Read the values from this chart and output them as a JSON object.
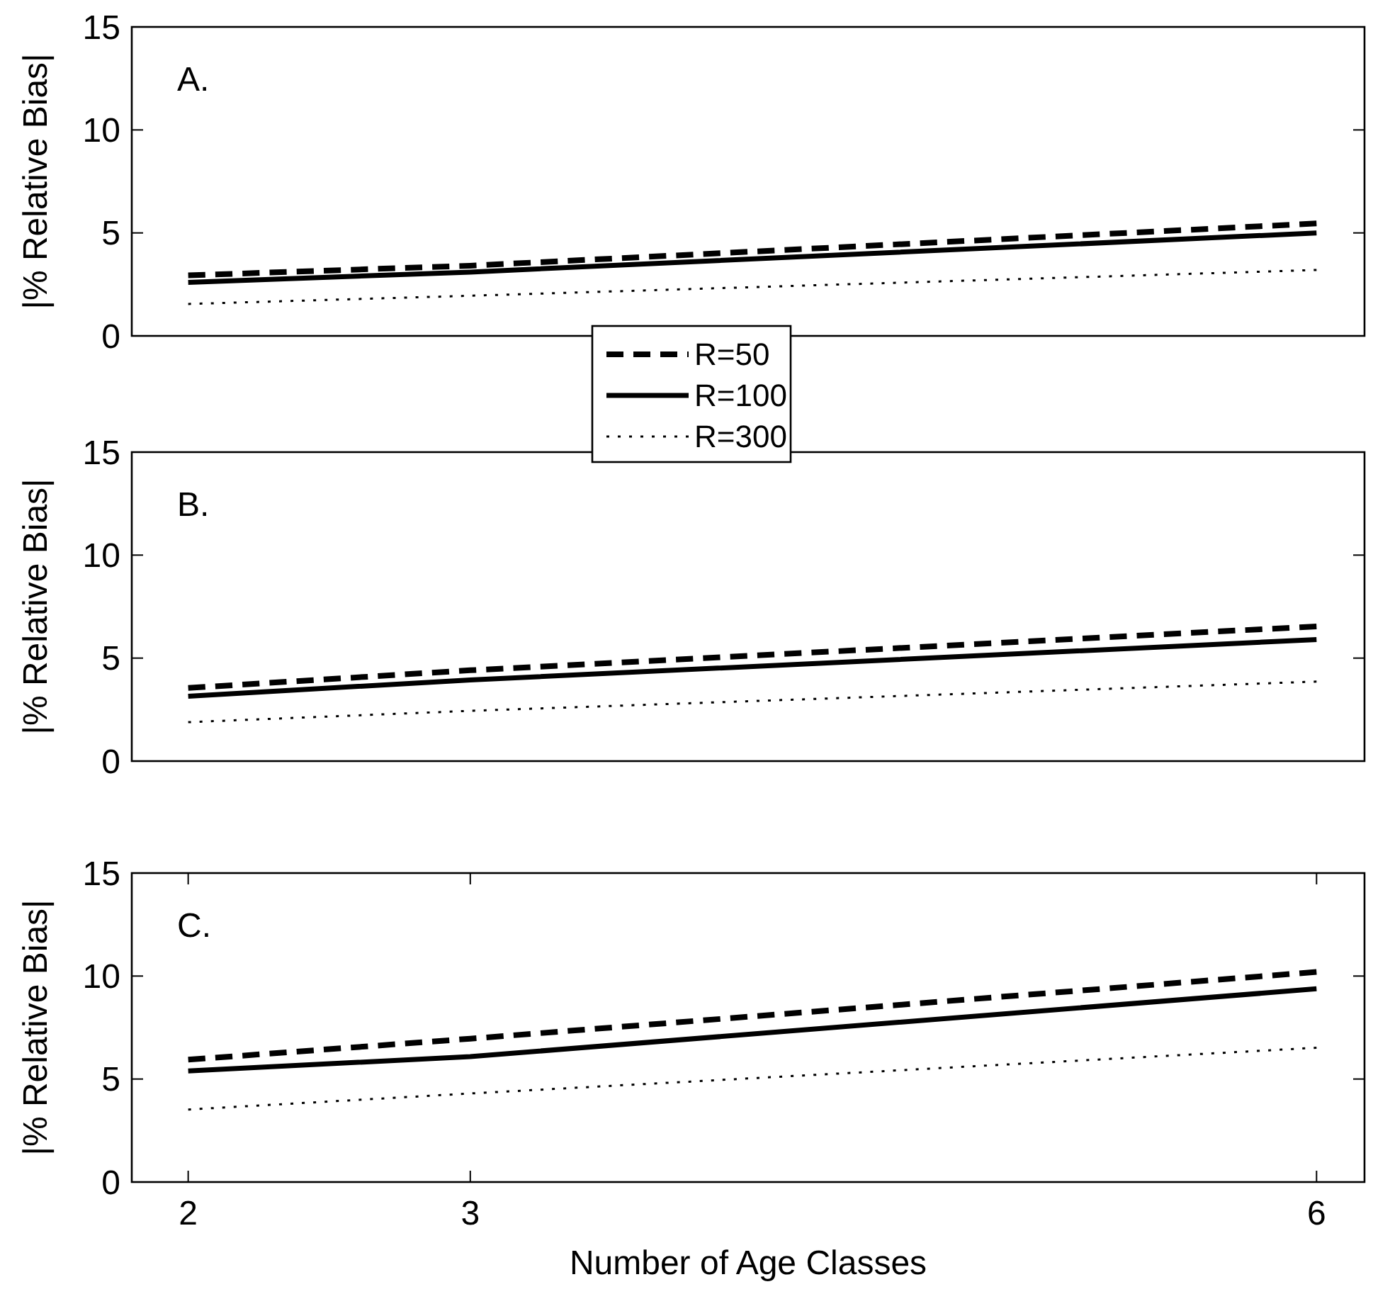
{
  "chart_data": [
    {
      "type": "line",
      "ylabel": "|% Relative Bias|",
      "annotations": [
        "A."
      ],
      "x": [
        2,
        3,
        6
      ],
      "xlim": [
        1.8,
        6.17
      ],
      "ylim": [
        0,
        15
      ],
      "yticks": [
        0,
        5,
        10,
        15
      ],
      "tick_labels": "y",
      "grid": false,
      "series": [
        {
          "color": "#000000",
          "line_style": "dashed",
          "values": [
            2.94,
            3.41,
            5.46
          ]
        },
        {
          "color": "#000000",
          "line_style": "solid",
          "values": [
            2.6,
            3.1,
            5.0
          ]
        },
        {
          "color": "#000000",
          "line_style": "dotted",
          "values": [
            1.55,
            1.95,
            3.2
          ]
        }
      ]
    },
    {
      "type": "line",
      "ylabel": "|% Relative Bias|",
      "annotations": [
        "B."
      ],
      "x": [
        2,
        3,
        6
      ],
      "xlim": [
        1.8,
        6.17
      ],
      "ylim": [
        0,
        15
      ],
      "yticks": [
        0,
        5,
        10,
        15
      ],
      "tick_labels": "y",
      "grid": false,
      "legend": "top",
      "series": [
        {
          "name": "R=50",
          "color": "#000000",
          "line_style": "dashed",
          "values": [
            3.55,
            4.41,
            6.54
          ]
        },
        {
          "name": "R=100",
          "color": "#000000",
          "line_style": "solid",
          "values": [
            3.15,
            3.94,
            5.9
          ]
        },
        {
          "name": "R=300",
          "color": "#000000",
          "line_style": "dotted",
          "values": [
            1.89,
            2.44,
            3.86
          ]
        }
      ]
    },
    {
      "type": "line",
      "ylabel": "|% Relative Bias|",
      "xlabel": "Number of Age Classes",
      "annotations": [
        "C."
      ],
      "x": [
        2,
        3,
        6
      ],
      "xlim": [
        1.8,
        6.17
      ],
      "xticks": [
        2,
        3,
        6
      ],
      "ylim": [
        0,
        15
      ],
      "yticks": [
        0,
        5,
        10,
        15
      ],
      "grid": false,
      "series": [
        {
          "color": "#000000",
          "line_style": "dashed",
          "values": [
            5.94,
            6.96,
            10.2
          ]
        },
        {
          "color": "#000000",
          "line_style": "solid",
          "values": [
            5.39,
            6.09,
            9.38
          ]
        },
        {
          "color": "#000000",
          "line_style": "dotted",
          "values": [
            3.52,
            4.3,
            6.52
          ]
        }
      ]
    }
  ]
}
